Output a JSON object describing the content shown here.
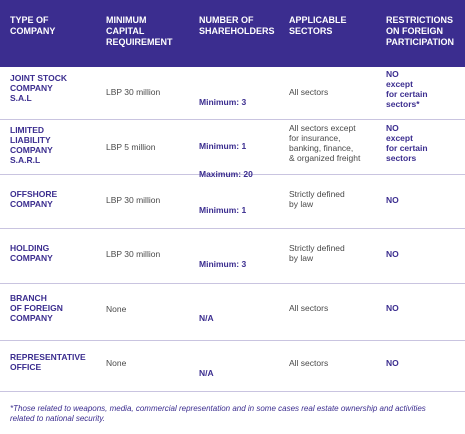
{
  "header": {
    "type": "TYPE OF\nCOMPANY",
    "capital": "MINIMUM\nCAPITAL\nREQUIREMENT",
    "shareholders": "NUMBER OF\nSHAREHOLDERS",
    "sectors": "APPLICABLE\nSECTORS",
    "restrictions": "RESTRICTIONS\nON FOREIGN\nPARTICIPATION"
  },
  "rows": [
    {
      "type": "JOINT STOCK\nCOMPANY\nS.A.L",
      "capital": "LBP 30 million",
      "shareholders": [
        "Minimum: 3"
      ],
      "sectors": "All sectors",
      "restrictions": "NO\nexcept\nfor certain\nsectors*"
    },
    {
      "type": "LIMITED\nLIABILITY\nCOMPANY\nS.A.R.L",
      "capital": "LBP 5 million",
      "shareholders": [
        "Minimum: 1",
        "Maximum: 20"
      ],
      "sectors": "All sectors except\nfor insurance,\nbanking, finance,\n& organized freight",
      "restrictions": "NO\nexcept\nfor certain\nsectors"
    },
    {
      "type": "OFFSHORE\nCOMPANY",
      "capital": "LBP 30 million",
      "shareholders": [
        "Minimum: 1"
      ],
      "sectors": "Strictly defined\nby law",
      "restrictions": "NO"
    },
    {
      "type": "HOLDING\nCOMPANY",
      "capital": "LBP 30 million",
      "shareholders": [
        "Minimum: 3"
      ],
      "sectors": "Strictly defined\nby law",
      "restrictions": "NO"
    },
    {
      "type": "BRANCH\nOF FOREIGN\nCOMPANY",
      "capital": "None",
      "shareholders": [
        "N/A"
      ],
      "sectors": "All sectors",
      "restrictions": "NO"
    },
    {
      "type": "REPRESENTATIVE\nOFFICE",
      "capital": "None",
      "shareholders": [
        "N/A"
      ],
      "sectors": "All sectors",
      "restrictions": "NO"
    }
  ],
  "footnote": "*Those related to weapons, media, commercial representation and in some cases real estate ownership and activities related to national security.",
  "colors": {
    "header_bg": "#3b2d8f",
    "accent_text": "#3b2d8f",
    "body_text": "#4a4a4a",
    "divider": "#c9c4e0"
  }
}
